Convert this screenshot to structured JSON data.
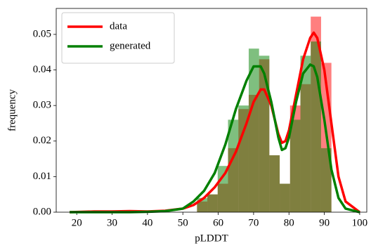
{
  "chart_data": {
    "type": "histogram",
    "xlabel": "pLDDT",
    "ylabel": "frequency",
    "bins": [
      54,
      56.92,
      59.85,
      62.77,
      65.69,
      68.62,
      71.54,
      74.46,
      77.38,
      80.31,
      83.23,
      86.15,
      89.08,
      92
    ],
    "kde_x": [
      18,
      25,
      30,
      35,
      40,
      45,
      50,
      53,
      56,
      59,
      62,
      65,
      68,
      70,
      72,
      73,
      75,
      77,
      78,
      79,
      80,
      82,
      84,
      86,
      87,
      88,
      90,
      92,
      94,
      96,
      100
    ],
    "series": [
      {
        "name": "data",
        "color": "#ff0000",
        "values": [
          0.003,
          0.005,
          0.008,
          0.018,
          0.029,
          0.033,
          0.043,
          0.016,
          0.008,
          0.03,
          0.036,
          0.055,
          0.042
        ],
        "kde": [
          0,
          0.0002,
          0.0002,
          0.0003,
          0.0002,
          0.0004,
          0.001,
          0.002,
          0.004,
          0.007,
          0.011,
          0.017,
          0.025,
          0.031,
          0.0345,
          0.0345,
          0.03,
          0.022,
          0.0195,
          0.02,
          0.023,
          0.033,
          0.043,
          0.049,
          0.0505,
          0.049,
          0.04,
          0.025,
          0.01,
          0.003,
          0
        ]
      },
      {
        "name": "generated",
        "color": "#008000",
        "values": [
          0.004,
          0.005,
          0.013,
          0.026,
          0.03,
          0.046,
          0.044,
          0.016,
          0.008,
          0.026,
          0.044,
          0.048,
          0.018
        ],
        "kde": [
          0,
          0,
          0,
          0,
          0.0001,
          0.0003,
          0.001,
          0.003,
          0.006,
          0.011,
          0.019,
          0.029,
          0.037,
          0.041,
          0.041,
          0.039,
          0.031,
          0.021,
          0.0175,
          0.018,
          0.021,
          0.031,
          0.039,
          0.0415,
          0.041,
          0.038,
          0.026,
          0.012,
          0.004,
          0.001,
          0
        ]
      }
    ],
    "xlim": [
      14.2,
      102
    ],
    "ylim": [
      0,
      0.0573
    ],
    "xticks": [
      20,
      30,
      40,
      50,
      60,
      70,
      80,
      90,
      100
    ],
    "yticks": [
      {
        "value": 0,
        "label": "0.00"
      },
      {
        "value": 0.01,
        "label": "0.01"
      },
      {
        "value": 0.02,
        "label": "0.02"
      },
      {
        "value": 0.03,
        "label": "0.03"
      },
      {
        "value": 0.04,
        "label": "0.04"
      },
      {
        "value": 0.05,
        "label": "0.05"
      }
    ],
    "legend": "upper left",
    "bar_opacity": 0.5
  }
}
